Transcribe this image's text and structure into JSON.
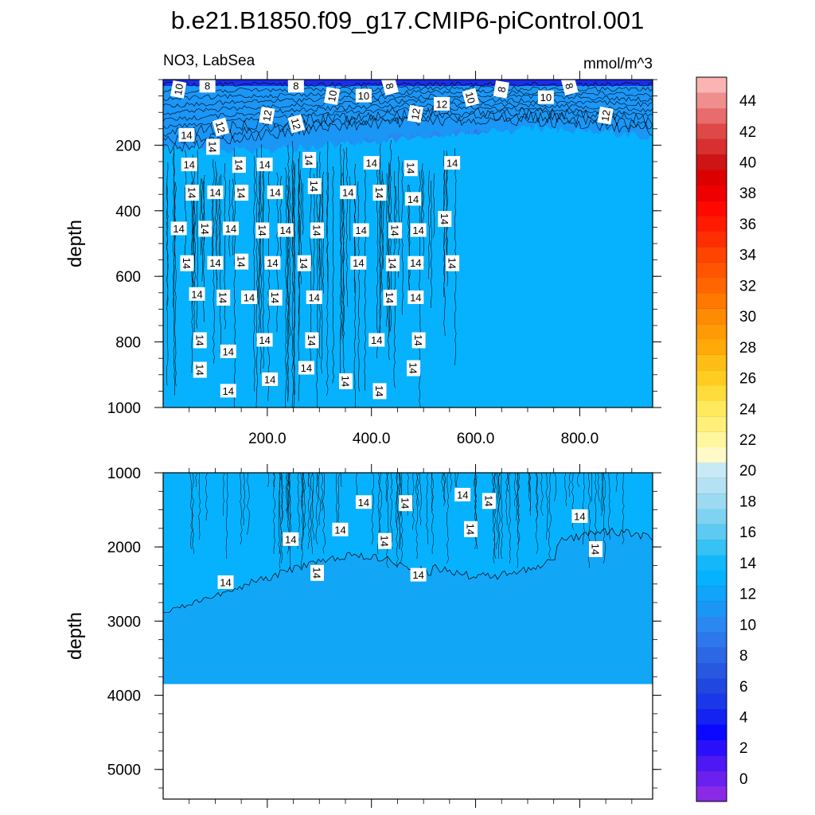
{
  "chart_data": [
    {
      "type": "heatmap",
      "panel": "upper",
      "title": "b.e21.B1850.f09_g17.CMIP6-piControl.001",
      "left_subtitle": "NO3, LabSea",
      "right_subtitle": "mmol/m^3",
      "ylabel": "depth",
      "xlabel": "",
      "xlim": [
        0,
        940
      ],
      "ylim": [
        1000,
        0
      ],
      "y_inverted": true,
      "x_ticks": [
        200,
        400,
        600,
        800
      ],
      "x_tick_labels": [
        "200.0",
        "400.0",
        "600.0",
        "800.0"
      ],
      "y_ticks": [
        200,
        400,
        600,
        800,
        1000
      ],
      "y_tick_labels": [
        "200",
        "400",
        "600",
        "800",
        "1000"
      ],
      "contour_labels": [
        {
          "x": 30,
          "y": 30,
          "text": "10"
        },
        {
          "x": 85,
          "y": 20,
          "text": "8"
        },
        {
          "x": 110,
          "y": 145,
          "text": "12"
        },
        {
          "x": 200,
          "y": 110,
          "text": "12"
        },
        {
          "x": 255,
          "y": 20,
          "text": "8"
        },
        {
          "x": 255,
          "y": 135,
          "text": "12"
        },
        {
          "x": 325,
          "y": 50,
          "text": "10"
        },
        {
          "x": 385,
          "y": 50,
          "text": "10"
        },
        {
          "x": 435,
          "y": 20,
          "text": "8"
        },
        {
          "x": 485,
          "y": 105,
          "text": "12"
        },
        {
          "x": 535,
          "y": 75,
          "text": "12"
        },
        {
          "x": 590,
          "y": 55,
          "text": "10"
        },
        {
          "x": 650,
          "y": 30,
          "text": "8"
        },
        {
          "x": 735,
          "y": 55,
          "text": "10"
        },
        {
          "x": 780,
          "y": 20,
          "text": "8"
        },
        {
          "x": 850,
          "y": 110,
          "text": "12"
        },
        {
          "x": 45,
          "y": 170,
          "text": "14"
        },
        {
          "x": 95,
          "y": 205,
          "text": "14"
        },
        {
          "x": 50,
          "y": 260,
          "text": "14"
        },
        {
          "x": 145,
          "y": 260,
          "text": "14"
        },
        {
          "x": 195,
          "y": 260,
          "text": "14"
        },
        {
          "x": 280,
          "y": 245,
          "text": "14"
        },
        {
          "x": 400,
          "y": 255,
          "text": "14"
        },
        {
          "x": 475,
          "y": 270,
          "text": "14"
        },
        {
          "x": 555,
          "y": 255,
          "text": "14"
        },
        {
          "x": 55,
          "y": 345,
          "text": "14"
        },
        {
          "x": 100,
          "y": 345,
          "text": "14"
        },
        {
          "x": 150,
          "y": 345,
          "text": "14"
        },
        {
          "x": 215,
          "y": 345,
          "text": "14"
        },
        {
          "x": 290,
          "y": 325,
          "text": "14"
        },
        {
          "x": 355,
          "y": 345,
          "text": "14"
        },
        {
          "x": 415,
          "y": 345,
          "text": "14"
        },
        {
          "x": 480,
          "y": 365,
          "text": "14"
        },
        {
          "x": 540,
          "y": 425,
          "text": "14"
        },
        {
          "x": 30,
          "y": 455,
          "text": "14"
        },
        {
          "x": 80,
          "y": 455,
          "text": "14"
        },
        {
          "x": 130,
          "y": 455,
          "text": "14"
        },
        {
          "x": 190,
          "y": 460,
          "text": "14"
        },
        {
          "x": 235,
          "y": 460,
          "text": "14"
        },
        {
          "x": 295,
          "y": 460,
          "text": "14"
        },
        {
          "x": 380,
          "y": 460,
          "text": "14"
        },
        {
          "x": 445,
          "y": 460,
          "text": "14"
        },
        {
          "x": 490,
          "y": 460,
          "text": "14"
        },
        {
          "x": 45,
          "y": 560,
          "text": "14"
        },
        {
          "x": 100,
          "y": 560,
          "text": "14"
        },
        {
          "x": 150,
          "y": 555,
          "text": "14"
        },
        {
          "x": 210,
          "y": 560,
          "text": "14"
        },
        {
          "x": 270,
          "y": 560,
          "text": "14"
        },
        {
          "x": 375,
          "y": 560,
          "text": "14"
        },
        {
          "x": 440,
          "y": 560,
          "text": "14"
        },
        {
          "x": 485,
          "y": 560,
          "text": "14"
        },
        {
          "x": 555,
          "y": 560,
          "text": "14"
        },
        {
          "x": 65,
          "y": 655,
          "text": "14"
        },
        {
          "x": 115,
          "y": 665,
          "text": "14"
        },
        {
          "x": 165,
          "y": 665,
          "text": "14"
        },
        {
          "x": 215,
          "y": 665,
          "text": "14"
        },
        {
          "x": 290,
          "y": 665,
          "text": "14"
        },
        {
          "x": 435,
          "y": 665,
          "text": "14"
        },
        {
          "x": 485,
          "y": 665,
          "text": "14"
        },
        {
          "x": 70,
          "y": 795,
          "text": "14"
        },
        {
          "x": 195,
          "y": 795,
          "text": "14"
        },
        {
          "x": 285,
          "y": 795,
          "text": "14"
        },
        {
          "x": 410,
          "y": 795,
          "text": "14"
        },
        {
          "x": 490,
          "y": 795,
          "text": "14"
        },
        {
          "x": 125,
          "y": 830,
          "text": "14"
        },
        {
          "x": 70,
          "y": 885,
          "text": "14"
        },
        {
          "x": 275,
          "y": 880,
          "text": "14"
        },
        {
          "x": 480,
          "y": 880,
          "text": "14"
        },
        {
          "x": 205,
          "y": 915,
          "text": "14"
        },
        {
          "x": 350,
          "y": 920,
          "text": "14"
        },
        {
          "x": 125,
          "y": 950,
          "text": "14"
        },
        {
          "x": 415,
          "y": 950,
          "text": "14"
        }
      ]
    },
    {
      "type": "heatmap",
      "panel": "lower",
      "ylabel": "depth",
      "xlabel": "",
      "xlim": [
        0,
        940
      ],
      "ylim": [
        5400,
        1000
      ],
      "y_inverted": true,
      "x_ticks": [
        200,
        400,
        600,
        800
      ],
      "x_tick_labels": [
        "",
        "",
        "",
        ""
      ],
      "y_ticks": [
        1000,
        2000,
        3000,
        4000,
        5000
      ],
      "y_tick_labels": [
        "1000",
        "2000",
        "3000",
        "4000",
        "5000"
      ],
      "ocean_bottom_depth": 3850,
      "contour_labels": [
        {
          "x": 385,
          "y": 1400,
          "text": "14"
        },
        {
          "x": 465,
          "y": 1410,
          "text": "14"
        },
        {
          "x": 575,
          "y": 1300,
          "text": "14"
        },
        {
          "x": 625,
          "y": 1380,
          "text": "14"
        },
        {
          "x": 340,
          "y": 1770,
          "text": "14"
        },
        {
          "x": 590,
          "y": 1760,
          "text": "14"
        },
        {
          "x": 245,
          "y": 1900,
          "text": "14"
        },
        {
          "x": 425,
          "y": 1920,
          "text": "14"
        },
        {
          "x": 800,
          "y": 1590,
          "text": "14"
        },
        {
          "x": 830,
          "y": 2030,
          "text": "14"
        },
        {
          "x": 120,
          "y": 2480,
          "text": "14"
        },
        {
          "x": 295,
          "y": 2350,
          "text": "14"
        },
        {
          "x": 490,
          "y": 2380,
          "text": "14"
        }
      ]
    },
    {
      "type": "colorbar",
      "levels": [
        0,
        1,
        2,
        3,
        4,
        5,
        6,
        7,
        8,
        9,
        10,
        11,
        12,
        13,
        14,
        15,
        16,
        17,
        18,
        19,
        20,
        21,
        22,
        23,
        24,
        25,
        26,
        27,
        28,
        29,
        30,
        31,
        32,
        33,
        34,
        35,
        36,
        37,
        38,
        39,
        40,
        41,
        42,
        43,
        44,
        45
      ],
      "tick_labels": [
        "0",
        "2",
        "4",
        "6",
        "8",
        "10",
        "12",
        "14",
        "16",
        "18",
        "20",
        "22",
        "24",
        "26",
        "28",
        "30",
        "32",
        "34",
        "36",
        "38",
        "40",
        "42",
        "44"
      ],
      "colors": [
        "#8a2ae6",
        "#6a20ee",
        "#4c18f4",
        "#2a10fa",
        "#0a08ff",
        "#1422f2",
        "#1a38ea",
        "#2048e0",
        "#2858e0",
        "#2c68e6",
        "#2c78ec",
        "#2a88f0",
        "#1a96f6",
        "#10a4fa",
        "#06b2fe",
        "#12b8fa",
        "#36c2f4",
        "#5ccaf2",
        "#80d2f2",
        "#9cdaf2",
        "#b4e2f4",
        "#c8eaf6",
        "#fffac8",
        "#fff6a0",
        "#fff07a",
        "#ffea5e",
        "#ffdc3c",
        "#ffcc20",
        "#ffbe14",
        "#ffaa08",
        "#ff9a06",
        "#ff8a04",
        "#ff7800",
        "#ff6600",
        "#ff5400",
        "#ff4400",
        "#ff2e00",
        "#ff1a00",
        "#ff0800",
        "#ee0000",
        "#dc0000",
        "#ce1414",
        "#d83030",
        "#e04848",
        "#e86c6c",
        "#f08e8e",
        "#fab4b4"
      ]
    }
  ]
}
